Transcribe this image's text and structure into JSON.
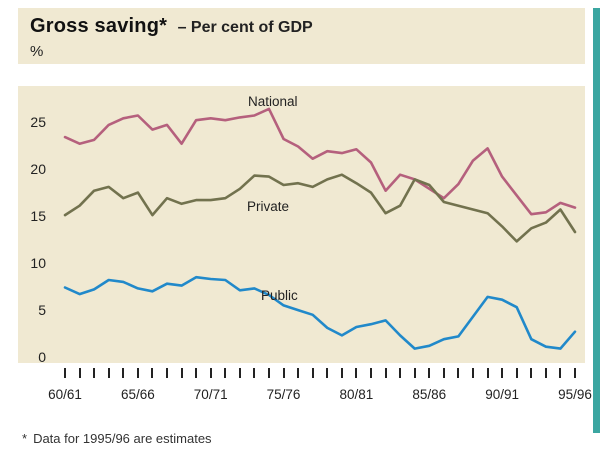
{
  "header": {
    "title_bold": "Gross saving*",
    "title_rest": "– Per cent of GDP",
    "unit": "%"
  },
  "footnote": {
    "marker": "*",
    "text": "Data for 1995/96 are estimates"
  },
  "colors": {
    "background_beige": "#f0e9d2",
    "accent_teal": "#3ba6a1",
    "national": "#b5607d",
    "private": "#72724e",
    "public": "#2189ca",
    "text": "#222222"
  },
  "chart_data": {
    "type": "line",
    "title": "Gross saving* – Per cent of GDP",
    "ylabel": "%",
    "xlabel": "",
    "ylim": [
      0,
      27.5
    ],
    "yticks": [
      0,
      5,
      10,
      15,
      20,
      25
    ],
    "grid": false,
    "legend_position": "inline-labels",
    "x_tick_labels_shown": [
      "60/61",
      "65/66",
      "70/71",
      "75/76",
      "80/81",
      "85/86",
      "90/91",
      "95/96"
    ],
    "categories": [
      "60/61",
      "61/62",
      "62/63",
      "63/64",
      "64/65",
      "65/66",
      "66/67",
      "67/68",
      "68/69",
      "69/70",
      "70/71",
      "71/72",
      "72/73",
      "73/74",
      "74/75",
      "75/76",
      "76/77",
      "77/78",
      "78/79",
      "79/80",
      "80/81",
      "81/82",
      "82/83",
      "83/84",
      "84/85",
      "85/86",
      "86/87",
      "87/88",
      "88/89",
      "89/90",
      "90/91",
      "91/92",
      "92/93",
      "93/94",
      "94/95",
      "95/96"
    ],
    "series": [
      {
        "name": "National",
        "color": "#b5607d",
        "values": [
          23.5,
          22.8,
          23.2,
          24.8,
          25.5,
          25.8,
          24.3,
          24.8,
          22.8,
          25.3,
          25.5,
          25.3,
          25.6,
          25.8,
          26.5,
          23.3,
          22.5,
          21.2,
          22.0,
          21.8,
          22.2,
          20.8,
          17.8,
          19.5,
          19.0,
          18.0,
          17.0,
          18.5,
          21.0,
          22.3,
          19.3,
          17.3,
          15.3,
          15.5,
          16.5,
          16.0
        ]
      },
      {
        "name": "Private",
        "color": "#72724e",
        "values": [
          15.2,
          16.2,
          17.8,
          18.2,
          17.0,
          17.6,
          15.2,
          17.0,
          16.4,
          16.8,
          16.8,
          17.0,
          18.0,
          19.4,
          19.3,
          18.4,
          18.6,
          18.2,
          19.0,
          19.5,
          18.6,
          17.6,
          15.4,
          16.2,
          19.0,
          18.4,
          16.6,
          16.2,
          15.8,
          15.4,
          14.0,
          12.4,
          13.8,
          14.4,
          15.8,
          13.4
        ]
      },
      {
        "name": "Public",
        "color": "#2189ca",
        "values": [
          7.5,
          6.8,
          7.3,
          8.3,
          8.1,
          7.4,
          7.1,
          7.9,
          7.7,
          8.6,
          8.4,
          8.3,
          7.2,
          7.4,
          6.7,
          5.6,
          5.1,
          4.6,
          3.2,
          2.4,
          3.3,
          3.6,
          4.0,
          2.4,
          1.0,
          1.3,
          2.0,
          2.3,
          4.4,
          6.5,
          6.2,
          5.4,
          2.0,
          1.2,
          1.0,
          2.8
        ]
      }
    ]
  }
}
